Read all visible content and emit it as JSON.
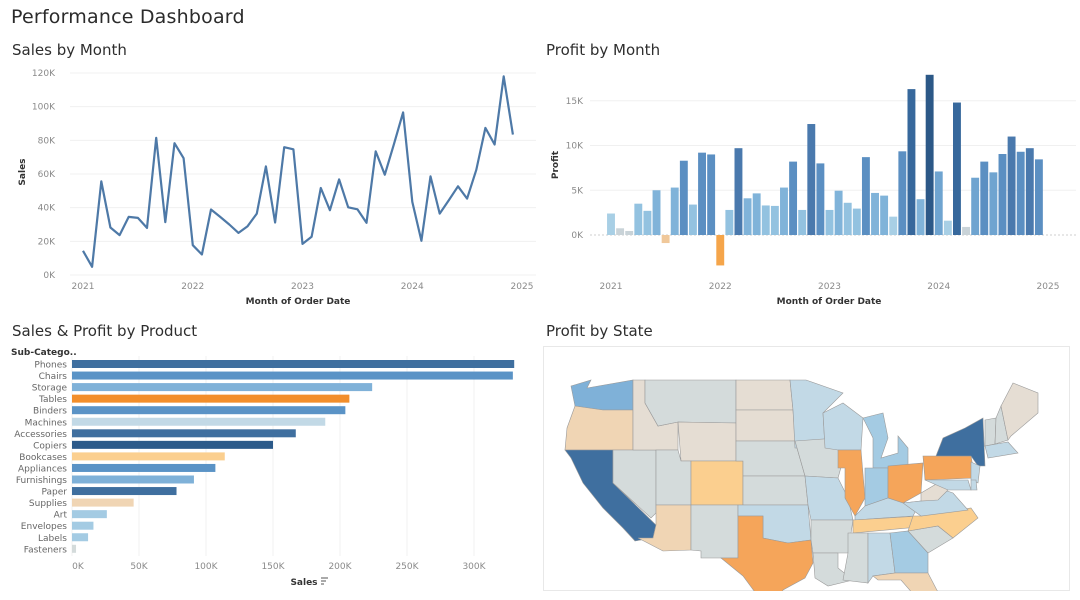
{
  "dashboard": {
    "title": "Performance Dashboard"
  },
  "panels": {
    "sales_by_month": {
      "title": "Sales by Month"
    },
    "profit_by_month": {
      "title": "Profit by Month"
    },
    "sales_profit_by_product": {
      "title": "Sales & Profit by Product",
      "column_header": "Sub-Catego..",
      "sort_icon": "sort-descending-icon"
    },
    "profit_by_state": {
      "title": "Profit by State"
    }
  },
  "colors": {
    "line": "#4e79a7",
    "profit_scale": [
      "#f28e2b",
      "#f5a55a",
      "#fbcf8f",
      "#f0d5b4",
      "#e5ddd3",
      "#d4dbdb",
      "#c2d9e6",
      "#a4cbe3",
      "#7fb1d8",
      "#5a93c6",
      "#3f6f9f",
      "#2c5a8a"
    ]
  },
  "chart_data": [
    {
      "type": "line",
      "title": "Sales by Month",
      "xlabel": "Month of Order Date",
      "ylabel": "Sales",
      "ylim": [
        0,
        120000
      ],
      "yticks": [
        0,
        20000,
        40000,
        60000,
        80000,
        100000,
        120000
      ],
      "ytick_labels": [
        "0K",
        "20K",
        "40K",
        "60K",
        "80K",
        "100K",
        "120K"
      ],
      "xticks": [
        "2021",
        "2022",
        "2023",
        "2024",
        "2025"
      ],
      "grid": true,
      "series": [
        {
          "name": "Sales",
          "start": "2021-01",
          "values": [
            14400,
            4900,
            55600,
            28200,
            23700,
            34500,
            33900,
            28000,
            81500,
            31400,
            78300,
            69400,
            17700,
            12200,
            38900,
            34500,
            30000,
            25000,
            29000,
            36500,
            64500,
            31200,
            75900,
            74700,
            18500,
            22700,
            51700,
            38500,
            56800,
            40200,
            39000,
            31000,
            73400,
            59600,
            77900,
            96600,
            43400,
            20300,
            58600,
            36500,
            44400,
            52700,
            45400,
            62500,
            87400,
            77500,
            118000,
            83400
          ]
        }
      ]
    },
    {
      "type": "bar",
      "title": "Profit by Month",
      "xlabel": "Month of Order Date",
      "ylabel": "Profit",
      "ylim": [
        -4000,
        18500
      ],
      "yticks": [
        0,
        5000,
        10000,
        15000
      ],
      "ytick_labels": [
        "0K",
        "5K",
        "10K",
        "15K"
      ],
      "xticks": [
        "2021",
        "2022",
        "2023",
        "2024",
        "2025"
      ],
      "grid": true,
      "series": [
        {
          "name": "Profit",
          "start": "2021-01",
          "values": [
            2400,
            750,
            450,
            3500,
            2700,
            5000,
            -900,
            5300,
            8300,
            3400,
            9200,
            9000,
            -3400,
            2800,
            9700,
            4100,
            4650,
            3300,
            3250,
            5300,
            8200,
            2800,
            12400,
            8000,
            2800,
            4950,
            3600,
            2950,
            8700,
            4700,
            4400,
            2050,
            9350,
            16300,
            4000,
            17900,
            7100,
            1600,
            14800,
            900,
            6400,
            8200,
            7000,
            9050,
            11000,
            9300,
            9700,
            8450
          ]
        }
      ]
    },
    {
      "type": "bar",
      "orientation": "horizontal",
      "title": "Sales & Profit by Product",
      "xlabel": "Sales",
      "ylabel": "Sub-Catego..",
      "xlim": [
        0,
        350000
      ],
      "xticks": [
        0,
        50000,
        100000,
        150000,
        200000,
        250000,
        300000
      ],
      "xtick_labels": [
        "0K",
        "50K",
        "100K",
        "150K",
        "200K",
        "250K",
        "300K"
      ],
      "grid": true,
      "categories": [
        "Phones",
        "Chairs",
        "Storage",
        "Tables",
        "Binders",
        "Machines",
        "Accessories",
        "Copiers",
        "Bookcases",
        "Appliances",
        "Furnishings",
        "Paper",
        "Supplies",
        "Art",
        "Envelopes",
        "Labels",
        "Fasteners"
      ],
      "values": [
        330000,
        329000,
        224000,
        207000,
        204000,
        189000,
        167000,
        150000,
        114000,
        107000,
        91000,
        78000,
        46000,
        26000,
        16000,
        12000,
        3000
      ],
      "color_level": [
        10,
        9,
        8,
        0,
        9,
        6,
        10,
        11,
        2,
        9,
        8,
        10,
        3,
        7,
        7,
        7,
        5
      ]
    },
    {
      "type": "heatmap",
      "subtype": "choropleth",
      "title": "Profit by State",
      "states": {
        "WA": 8,
        "OR": 3,
        "CA": 10,
        "NV": 5,
        "ID": 4,
        "MT": 5,
        "WY": 4,
        "UT": 5,
        "AZ": 3,
        "CO": 2,
        "NM": 5,
        "ND": 4,
        "SD": 4,
        "NE": 5,
        "KS": 5,
        "OK": 6,
        "TX": 1,
        "MN": 6,
        "IA": 5,
        "MO": 6,
        "AR": 5,
        "LA": 5,
        "WI": 6,
        "IL": 1,
        "MI": 7,
        "IN": 7,
        "OH": 1,
        "KY": 6,
        "TN": 2,
        "MS": 5,
        "AL": 6,
        "GA": 7,
        "FL": 3,
        "SC": 5,
        "NC": 2,
        "VA": 6,
        "WV": 4,
        "PA": 1,
        "NY": 10,
        "VT": 5,
        "NH": 5,
        "ME": 4,
        "MA": 6,
        "NJ": 6,
        "MD": 6,
        "DE": 6
      }
    }
  ]
}
